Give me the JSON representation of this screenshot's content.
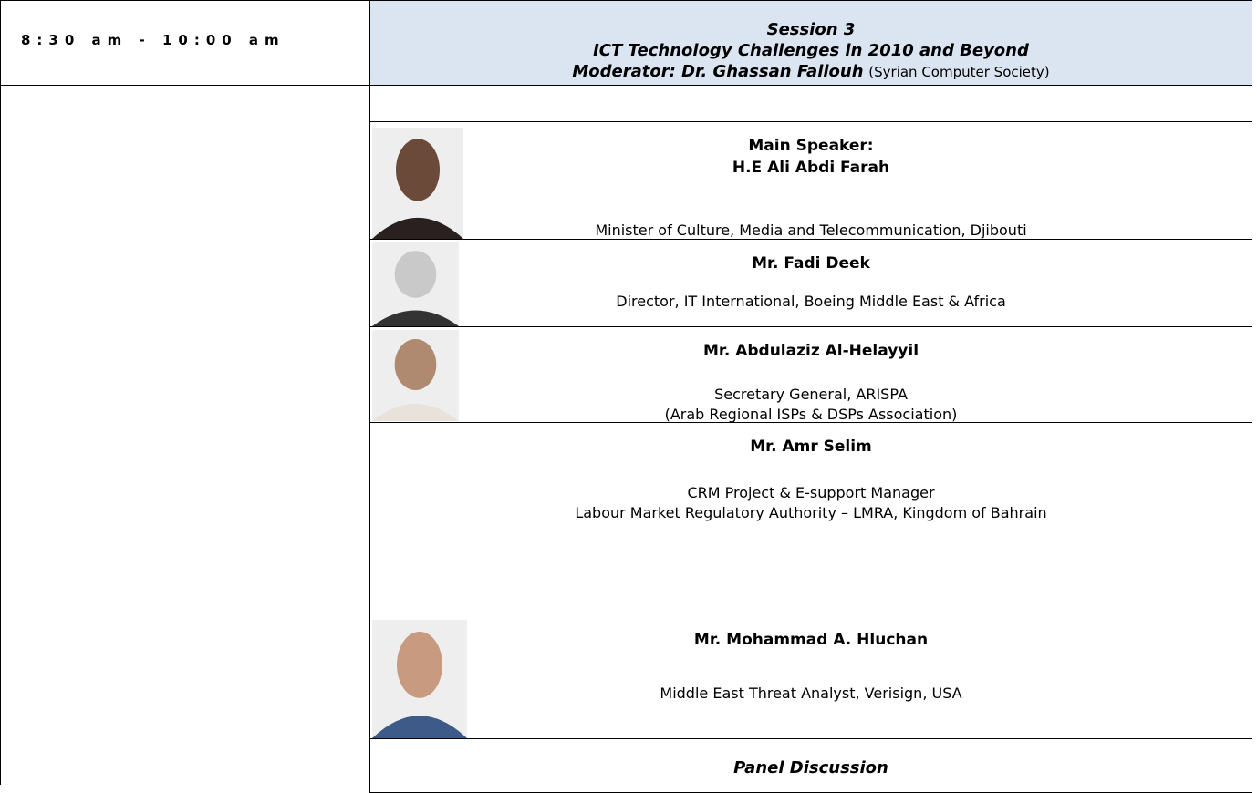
{
  "header": {
    "time": "8:30 am - 10:00 am",
    "session": "Session 3",
    "title": "ICT Technology Challenges in 2010 and Beyond",
    "moderator_label": "Moderator: Dr. Ghassan Fallouh",
    "moderator_org": "(Syrian Computer Society)"
  },
  "speakers": [
    {
      "role": "Main Speaker:",
      "name": "H.E Ali Abdi Farah",
      "lines": [
        "Minister of Culture, Media and Telecommunication, Djibouti"
      ]
    },
    {
      "name": "Mr. Fadi Deek",
      "lines": [
        "Director, IT International, Boeing Middle East & Africa"
      ]
    },
    {
      "name": "Mr. Abdulaziz Al-Helayyil",
      "lines": [
        "Secretary General, ARISPA",
        "(Arab Regional ISPs & DSPs Association)"
      ]
    },
    {
      "name": "Mr. Amr Selim",
      "lines": [
        "CRM Project & E-support Manager",
        "Labour Market Regulatory Authority – LMRA, Kingdom of Bahrain"
      ]
    },
    {
      "name": "Mr. Mohammad A. Hluchan",
      "lines": [
        "Middle East Threat Analyst, Verisign, USA"
      ]
    }
  ],
  "panel": "Panel Discussion"
}
